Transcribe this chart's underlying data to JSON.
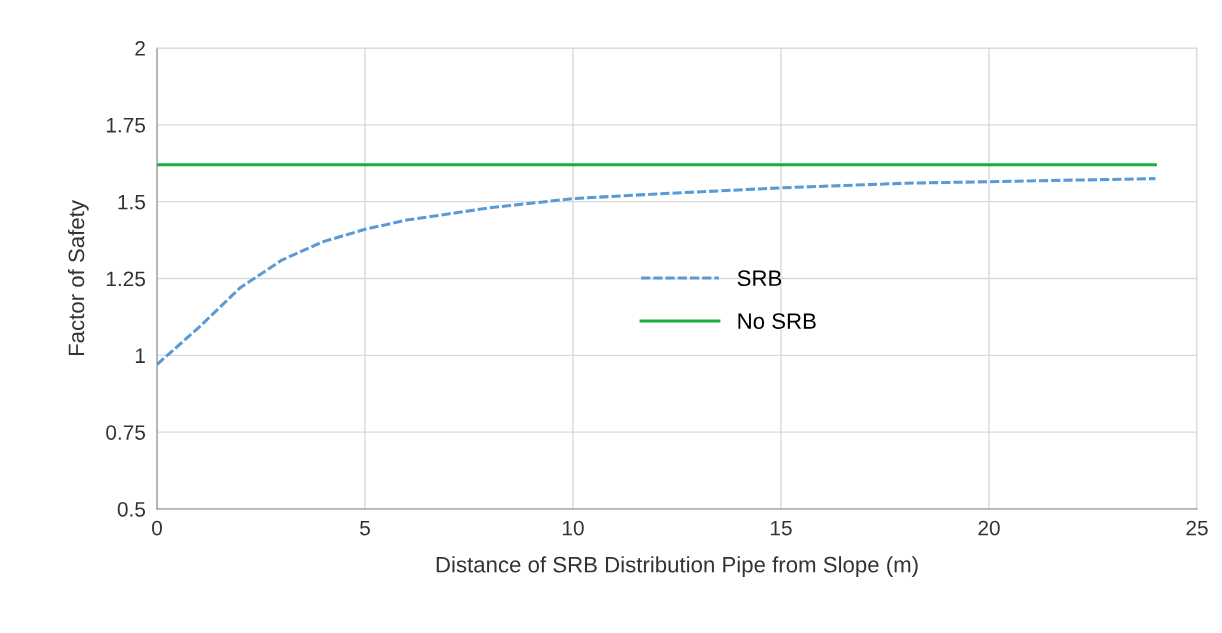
{
  "chart_data": {
    "type": "line",
    "xlabel": "Distance of SRB Distribution Pipe from Slope (m)",
    "ylabel": "Factor of Safety",
    "xlim": [
      0,
      25
    ],
    "xticks": [
      0,
      5,
      10,
      15,
      20,
      25
    ],
    "ylim": [
      0.5,
      2
    ],
    "yticks": [
      0.5,
      0.75,
      1,
      1.25,
      1.5,
      1.75,
      2
    ],
    "grid": true,
    "legend": "center",
    "series": [
      {
        "name": "SRB",
        "color": "#5b9bd5",
        "line_style": "dashed",
        "x": [
          0,
          1,
          2,
          3,
          4,
          5,
          6,
          7,
          8,
          10,
          12,
          15,
          18,
          20,
          24
        ],
        "values": [
          0.97,
          1.09,
          1.22,
          1.31,
          1.37,
          1.41,
          1.44,
          1.46,
          1.48,
          1.51,
          1.525,
          1.545,
          1.56,
          1.565,
          1.575
        ]
      },
      {
        "name": "No SRB",
        "color": "#1aaf3a",
        "line_style": "solid",
        "x": [
          0,
          24
        ],
        "values": [
          1.62,
          1.62
        ]
      }
    ]
  }
}
